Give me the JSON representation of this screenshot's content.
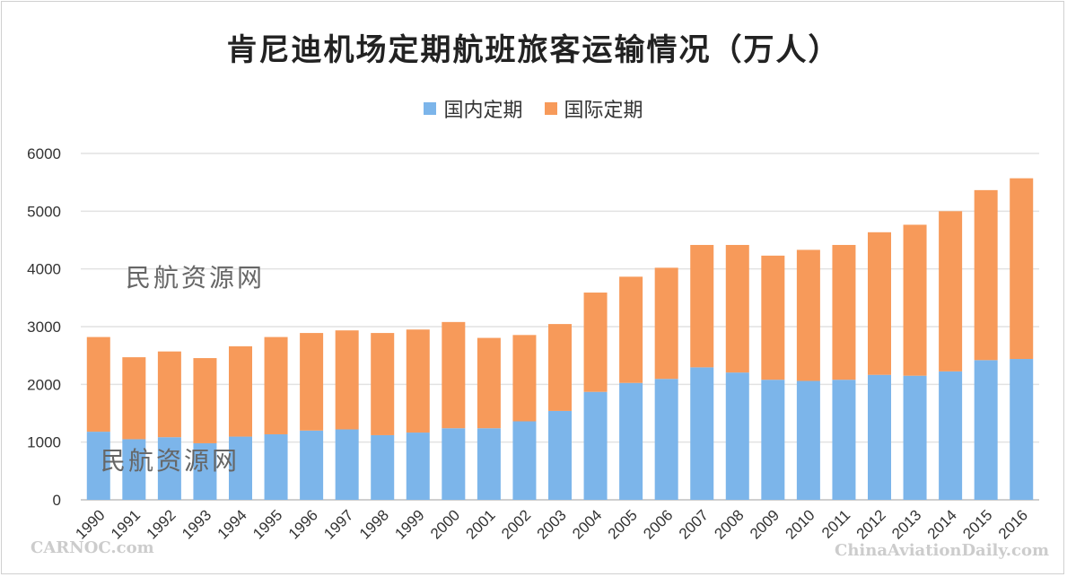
{
  "chart_data": {
    "type": "bar",
    "stacked": true,
    "title": "肯尼迪机场定期航班旅客运输情况（万人）",
    "xlabel": "",
    "ylabel": "",
    "ylim": [
      0,
      6000
    ],
    "yticks": [
      "0",
      "1000",
      "2000",
      "3000",
      "4000",
      "5000",
      "6000"
    ],
    "grid": true,
    "legend_position": "top",
    "categories": [
      "1990",
      "1991",
      "1992",
      "1993",
      "1994",
      "1995",
      "1996",
      "1997",
      "1998",
      "1999",
      "2000",
      "2001",
      "2002",
      "2003",
      "2004",
      "2005",
      "2006",
      "2007",
      "2008",
      "2009",
      "2010",
      "2011",
      "2012",
      "2013",
      "2014",
      "2015",
      "2016"
    ],
    "series": [
      {
        "name": "国内定期",
        "color": "#7cb5ea",
        "values": [
          1180,
          1050,
          1085,
          980,
          1095,
          1135,
          1200,
          1220,
          1120,
          1165,
          1240,
          1240,
          1360,
          1540,
          1870,
          2025,
          2095,
          2295,
          2205,
          2080,
          2060,
          2080,
          2165,
          2150,
          2225,
          2420,
          2440
        ]
      },
      {
        "name": "国际定期",
        "color": "#f79a5a",
        "values": [
          1640,
          1420,
          1485,
          1475,
          1565,
          1685,
          1690,
          1715,
          1770,
          1785,
          1840,
          1565,
          1495,
          1505,
          1720,
          1840,
          1925,
          2120,
          2210,
          2150,
          2270,
          2335,
          2470,
          2615,
          2775,
          2945,
          3130
        ]
      }
    ]
  },
  "watermarks": {
    "text1": "民航资源网",
    "text2": "民航资源网",
    "bottom_left": "CARNOC.com",
    "bottom_right": "ChinaAviationDaily.com"
  }
}
